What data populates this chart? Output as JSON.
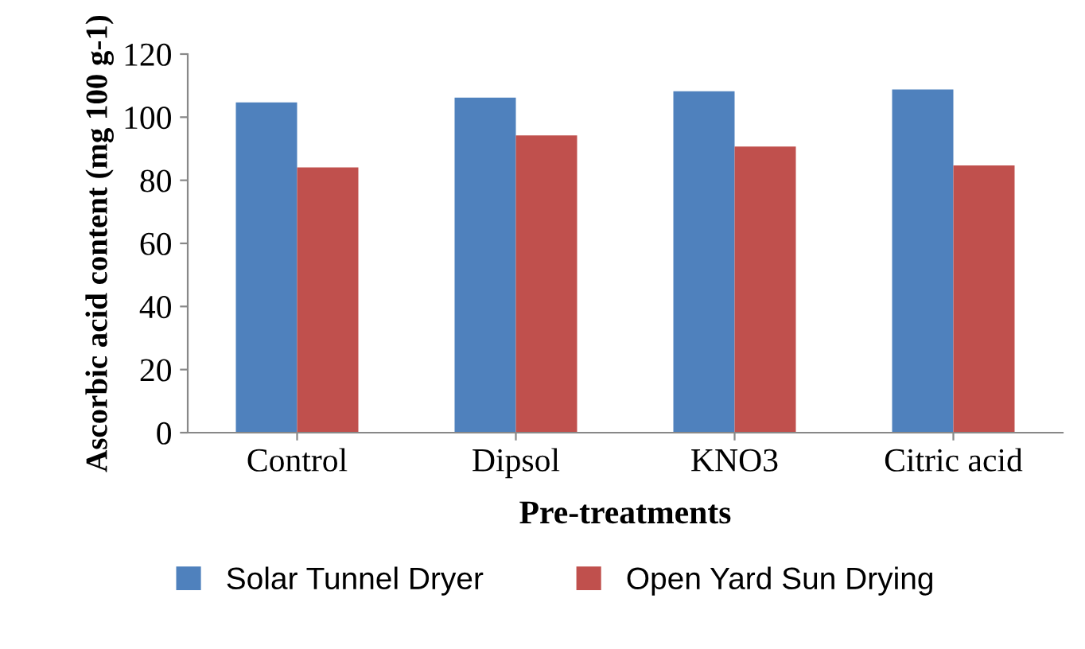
{
  "chart_data": {
    "type": "bar",
    "xlabel": "Pre-treatments",
    "ylabel": "Ascorbic acid content (mg 100 g-1)",
    "categories": [
      "Control",
      "Dipsol",
      "KNO3",
      "Citric acid"
    ],
    "series": [
      {
        "name": "Solar Tunnel Dryer",
        "color": "#4f81bd",
        "values": [
          104.7,
          106.2,
          108.2,
          108.8
        ]
      },
      {
        "name": "Open Yard Sun Drying",
        "color": "#c0504d",
        "values": [
          84.1,
          94.2,
          90.7,
          84.7
        ]
      }
    ],
    "ylim": [
      0,
      120
    ],
    "yticks": [
      0,
      20,
      40,
      60,
      80,
      100,
      120
    ],
    "grid": false,
    "legend": "bottom"
  }
}
